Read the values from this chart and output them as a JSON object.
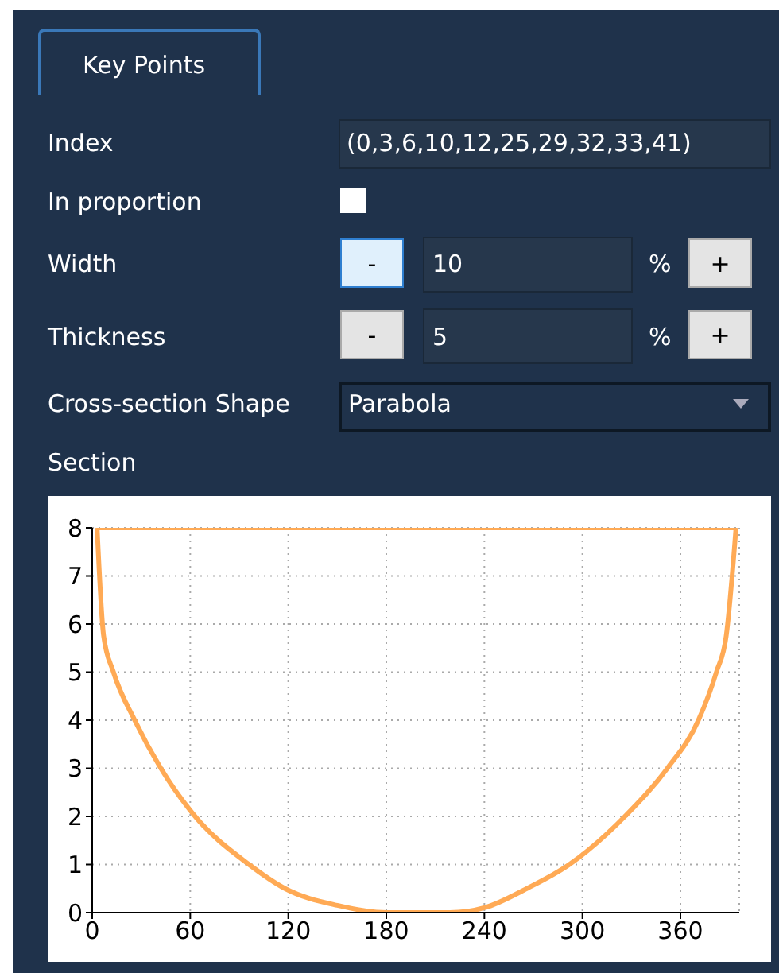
{
  "chart_data": {
    "type": "line",
    "title": "Section",
    "annotations": [
      "Key Points",
      "Index",
      "(0,3,6,10,12,25,29,32,33,41)",
      "In proportion",
      "Width",
      "-",
      "10",
      "%",
      "+",
      "Thickness",
      "-",
      "5",
      "%",
      "+",
      "Cross-section Shape",
      "Parabola"
    ],
    "series": [
      {
        "color": "#ffaa55",
        "x": [
          3,
          7,
          13,
          26,
          42,
          63,
          96,
          118,
          150,
          180,
          200,
          219,
          240,
          266,
          292,
          326,
          352,
          371,
          382,
          388,
          394
        ],
        "values": [
          8,
          5.75,
          5,
          4,
          3,
          2,
          1,
          0.5,
          0.15,
          0,
          0,
          0,
          0.1,
          0.5,
          1,
          2,
          3,
          4,
          5,
          5.75,
          8
        ]
      },
      {
        "color": "#ffaa55",
        "x": [
          3,
          394
        ],
        "values": [
          8,
          8
        ]
      }
    ],
    "xlim": [
      0,
      396
    ],
    "xticks": [
      0,
      60,
      120,
      180,
      240,
      300,
      360
    ],
    "ylim": [
      0,
      8
    ],
    "yticks": [
      0,
      1,
      2,
      3,
      4,
      5,
      6,
      7,
      8
    ],
    "grid": true,
    "line_style": "solid",
    "marker": "none"
  }
}
